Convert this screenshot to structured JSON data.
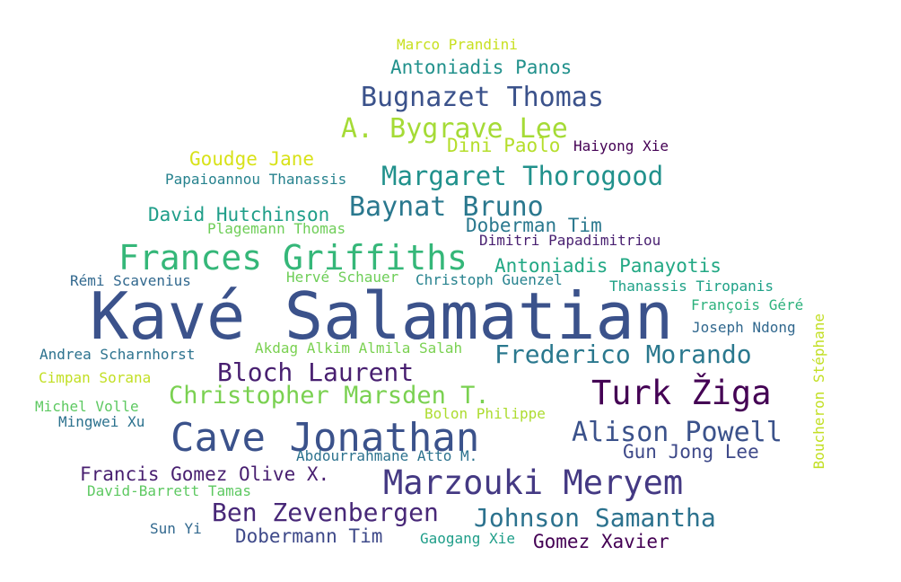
{
  "words": [
    {
      "text": "Kavé Salamatian",
      "color": "#3b528b"
    },
    {
      "text": "Cave Jonathan",
      "color": "#3b528b"
    },
    {
      "text": "Frances Griffiths",
      "color": "#35b779"
    },
    {
      "text": "Marzouki Meryem",
      "color": "#443983"
    },
    {
      "text": "Turk Žiga",
      "color": "#440154"
    },
    {
      "text": "Christopher Marsden T.",
      "color": "#7ad151"
    },
    {
      "text": "Margaret Thorogood",
      "color": "#21918c"
    },
    {
      "text": "Bugnazet Thomas",
      "color": "#3b528b"
    },
    {
      "text": "A. Bygrave Lee",
      "color": "#a5db36"
    },
    {
      "text": "Baynat Bruno",
      "color": "#2a788e"
    },
    {
      "text": "Frederico Morando",
      "color": "#2a788e"
    },
    {
      "text": "Alison Powell",
      "color": "#3b528b"
    },
    {
      "text": "Bloch Laurent",
      "color": "#481f70"
    },
    {
      "text": "Ben Zevenbergen",
      "color": "#482878"
    },
    {
      "text": "Johnson Samantha",
      "color": "#2c728e"
    },
    {
      "text": "Antoniadis Panos",
      "color": "#21918c"
    },
    {
      "text": "Goudge Jane",
      "color": "#d8e219"
    },
    {
      "text": "Dini Paolo",
      "color": "#b5de2b"
    },
    {
      "text": "Haiyong Xie",
      "color": "#440154"
    },
    {
      "text": "Papaioannou Thanassis",
      "color": "#26828e"
    },
    {
      "text": "David Hutchinson",
      "color": "#1f9e89"
    },
    {
      "text": "Plagemann Thomas",
      "color": "#6ece58"
    },
    {
      "text": "Doberman Tim",
      "color": "#2a788e"
    },
    {
      "text": "Dimitri Papadimitriou",
      "color": "#481f70"
    },
    {
      "text": "Antoniadis Panayotis",
      "color": "#22a884"
    },
    {
      "text": "Rémi Scavenius",
      "color": "#31688e"
    },
    {
      "text": "Hervé Schauer",
      "color": "#6ece58"
    },
    {
      "text": "Christoph Guenzel",
      "color": "#26828e"
    },
    {
      "text": "Thanassis Tiropanis",
      "color": "#1fa187"
    },
    {
      "text": "François Géré",
      "color": "#2db27d"
    },
    {
      "text": "Joseph Ndong",
      "color": "#31688e"
    },
    {
      "text": "Andrea Scharnhorst",
      "color": "#2c728e"
    },
    {
      "text": "Akdag Alkim Almila Salah",
      "color": "#7ad151"
    },
    {
      "text": "Cimpan Sorana",
      "color": "#c2df23"
    },
    {
      "text": "Michel Volle",
      "color": "#5ec962"
    },
    {
      "text": "Mingwei Xu",
      "color": "#2c728e"
    },
    {
      "text": "Bolon Philippe",
      "color": "#addc30"
    },
    {
      "text": "Gun Jong Lee",
      "color": "#3e4989"
    },
    {
      "text": "Abdourrahmane Atto M.",
      "color": "#2c728e"
    },
    {
      "text": "Francis Gomez Olive X.",
      "color": "#481f70"
    },
    {
      "text": "David-Barrett Tamas",
      "color": "#5ec962"
    },
    {
      "text": "Sun Yi",
      "color": "#31688e"
    },
    {
      "text": "Dobermann Tim",
      "color": "#3e4989"
    },
    {
      "text": "Gaogang Xie",
      "color": "#1f9e89"
    },
    {
      "text": "Gomez Xavier",
      "color": "#440154"
    },
    {
      "text": "Marco Prandini",
      "color": "#c8e020"
    },
    {
      "text": "Boucheron Stéphane",
      "color": "#c2df23"
    }
  ]
}
